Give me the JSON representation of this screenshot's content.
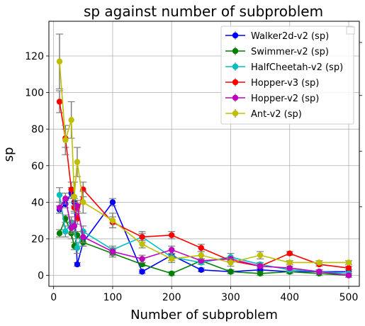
{
  "chart_data": {
    "type": "line",
    "title": "sp against number of subproblem",
    "xlabel": "Number of subproblem",
    "ylabel": "sp",
    "xlim": [
      -8,
      518
    ],
    "ylim": [
      -6,
      139
    ],
    "xticks": [
      0,
      100,
      200,
      300,
      400,
      500
    ],
    "yticks": [
      0,
      20,
      40,
      60,
      80,
      100,
      120
    ],
    "grid": true,
    "legend_position": "top-right",
    "x": [
      10,
      20,
      30,
      35,
      40,
      50,
      100,
      150,
      200,
      250,
      300,
      350,
      400,
      450,
      500
    ],
    "series": [
      {
        "name": "Walker2d-v2 (sp)",
        "color": "#0000ff",
        "values": [
          36,
          39,
          45,
          40,
          6,
          18,
          40,
          2,
          11,
          3,
          2,
          3,
          2,
          2,
          2
        ],
        "errors": [
          2,
          2,
          3,
          2,
          1,
          2,
          2,
          1,
          1,
          1,
          1,
          1,
          1,
          1,
          1
        ]
      },
      {
        "name": "Swimmer-v2 (sp)",
        "color": "#008000",
        "values": [
          23,
          31,
          23,
          16,
          22,
          18,
          12,
          6,
          1,
          8,
          2,
          1,
          2,
          1,
          0
        ],
        "errors": [
          2,
          2,
          3,
          2,
          2,
          2,
          2,
          1,
          1,
          1,
          1,
          1,
          1,
          1,
          1
        ]
      },
      {
        "name": "HalfCheetah-v2 (sp)",
        "color": "#00bfbf",
        "values": [
          44,
          24,
          29,
          27,
          15,
          24,
          14,
          21,
          10,
          7,
          10,
          6,
          3,
          2,
          1
        ],
        "errors": [
          4,
          3,
          3,
          3,
          3,
          3,
          2,
          3,
          2,
          1,
          2,
          1,
          1,
          1,
          1
        ]
      },
      {
        "name": "Hopper-v3 (sp)",
        "color": "#ff0000",
        "values": [
          95,
          75,
          47,
          37,
          31,
          47,
          29,
          21,
          22,
          15,
          8,
          5,
          12,
          6,
          4
        ],
        "errors": [
          6,
          5,
          4,
          3,
          3,
          4,
          3,
          2,
          2,
          2,
          1,
          1,
          1,
          1,
          1
        ]
      },
      {
        "name": "Hopper-v2 (sp)",
        "color": "#bf00bf",
        "values": [
          37,
          42,
          26,
          27,
          38,
          21,
          13,
          9,
          14,
          8,
          9,
          5,
          4,
          2,
          0
        ],
        "errors": [
          3,
          3,
          3,
          3,
          3,
          3,
          2,
          2,
          2,
          1,
          1,
          1,
          1,
          1,
          1
        ]
      },
      {
        "name": "Ant-v2 (sp)",
        "color": "#bfbf00",
        "values": [
          117,
          74,
          85,
          43,
          62,
          40,
          30,
          17,
          9,
          11,
          7,
          11,
          7,
          7,
          7
        ],
        "errors": [
          15,
          8,
          10,
          8,
          8,
          6,
          4,
          2,
          2,
          2,
          2,
          2,
          1,
          1,
          1
        ]
      }
    ]
  }
}
